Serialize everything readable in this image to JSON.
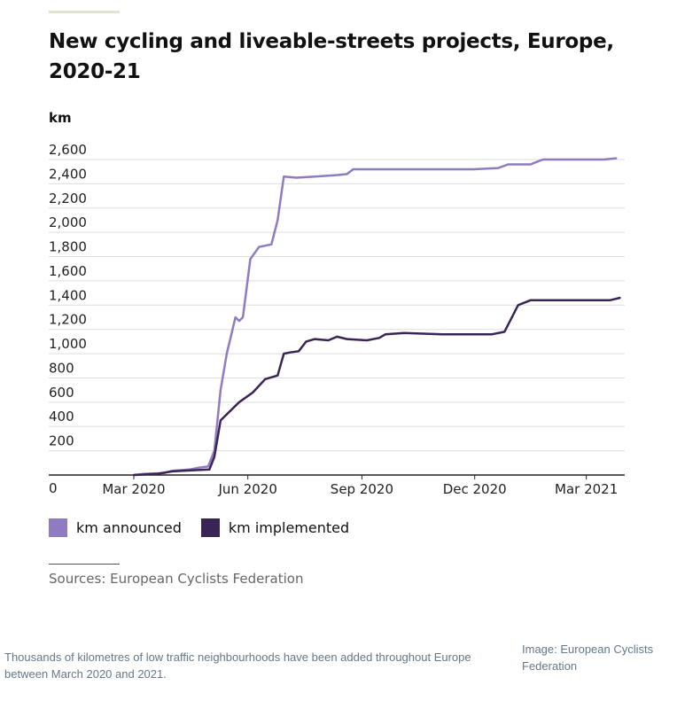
{
  "figure": {
    "title": "New cycling and liveable-streets projects, Europe, 2020-21",
    "unit_label": "km",
    "sources": "Sources: European Cyclists Federation"
  },
  "article": {
    "caption": "Thousands of kilometres of low traffic neighbourhoods have been added throughout Europe between March 2020 and 2021.",
    "credit": "Image: European Cyclists Federation"
  },
  "colors": {
    "announced": "#8e7bc2",
    "implemented": "#3a2456",
    "grid": "#dddddd",
    "axis": "#222222"
  },
  "chart_data": {
    "type": "line",
    "title": "New cycling and liveable-streets projects, Europe, 2020-21",
    "ylabel": "km",
    "xlabel": "",
    "ylim": [
      0,
      2600
    ],
    "grid": true,
    "legend_position": "bottom-left",
    "y_ticks": [
      {
        "value": 0,
        "label": "0"
      },
      {
        "value": 200,
        "label": "200"
      },
      {
        "value": 400,
        "label": "400"
      },
      {
        "value": 600,
        "label": "600"
      },
      {
        "value": 800,
        "label": "800"
      },
      {
        "value": 1000,
        "label": "1,000"
      },
      {
        "value": 1200,
        "label": "1,200"
      },
      {
        "value": 1400,
        "label": "1,400"
      },
      {
        "value": 1600,
        "label": "1,600"
      },
      {
        "value": 1800,
        "label": "1,800"
      },
      {
        "value": 2000,
        "label": "2,000"
      },
      {
        "value": 2200,
        "label": "2,200"
      },
      {
        "value": 2400,
        "label": "2,400"
      },
      {
        "value": 2600,
        "label": "2,600"
      }
    ],
    "x_ticks": [
      {
        "date": "2020-03-01",
        "label": "Mar 2020"
      },
      {
        "date": "2020-06-01",
        "label": "Jun 2020"
      },
      {
        "date": "2020-09-01",
        "label": "Sep 2020"
      },
      {
        "date": "2020-12-01",
        "label": "Dec 2020"
      },
      {
        "date": "2021-03-01",
        "label": "Mar 2021"
      }
    ],
    "x_domain": [
      "2020-02-15",
      "2021-04-01"
    ],
    "series": [
      {
        "name": "km announced",
        "color": "#8e7bc2",
        "points": [
          {
            "x": "2020-03-01",
            "y": 0
          },
          {
            "x": "2020-03-10",
            "y": 10
          },
          {
            "x": "2020-03-25",
            "y": 15
          },
          {
            "x": "2020-04-01",
            "y": 35
          },
          {
            "x": "2020-04-15",
            "y": 45
          },
          {
            "x": "2020-04-22",
            "y": 60
          },
          {
            "x": "2020-04-30",
            "y": 70
          },
          {
            "x": "2020-05-05",
            "y": 200
          },
          {
            "x": "2020-05-10",
            "y": 700
          },
          {
            "x": "2020-05-15",
            "y": 1000
          },
          {
            "x": "2020-05-22",
            "y": 1300
          },
          {
            "x": "2020-05-25",
            "y": 1270
          },
          {
            "x": "2020-05-28",
            "y": 1300
          },
          {
            "x": "2020-06-03",
            "y": 1780
          },
          {
            "x": "2020-06-10",
            "y": 1880
          },
          {
            "x": "2020-06-20",
            "y": 1900
          },
          {
            "x": "2020-06-25",
            "y": 2100
          },
          {
            "x": "2020-06-30",
            "y": 2460
          },
          {
            "x": "2020-07-10",
            "y": 2450
          },
          {
            "x": "2020-07-25",
            "y": 2460
          },
          {
            "x": "2020-08-10",
            "y": 2470
          },
          {
            "x": "2020-08-20",
            "y": 2480
          },
          {
            "x": "2020-08-25",
            "y": 2520
          },
          {
            "x": "2020-09-05",
            "y": 2520
          },
          {
            "x": "2020-11-30",
            "y": 2520
          },
          {
            "x": "2020-12-20",
            "y": 2530
          },
          {
            "x": "2020-12-28",
            "y": 2560
          },
          {
            "x": "2021-01-15",
            "y": 2560
          },
          {
            "x": "2021-01-20",
            "y": 2580
          },
          {
            "x": "2021-01-25",
            "y": 2600
          },
          {
            "x": "2021-03-15",
            "y": 2600
          },
          {
            "x": "2021-03-25",
            "y": 2610
          }
        ]
      },
      {
        "name": "km implemented",
        "color": "#3a2456",
        "points": [
          {
            "x": "2020-03-01",
            "y": 0
          },
          {
            "x": "2020-03-20",
            "y": 10
          },
          {
            "x": "2020-04-01",
            "y": 30
          },
          {
            "x": "2020-04-20",
            "y": 40
          },
          {
            "x": "2020-05-01",
            "y": 45
          },
          {
            "x": "2020-05-05",
            "y": 150
          },
          {
            "x": "2020-05-10",
            "y": 450
          },
          {
            "x": "2020-05-25",
            "y": 600
          },
          {
            "x": "2020-06-05",
            "y": 680
          },
          {
            "x": "2020-06-15",
            "y": 790
          },
          {
            "x": "2020-06-25",
            "y": 820
          },
          {
            "x": "2020-06-30",
            "y": 1000
          },
          {
            "x": "2020-07-05",
            "y": 1010
          },
          {
            "x": "2020-07-12",
            "y": 1020
          },
          {
            "x": "2020-07-18",
            "y": 1100
          },
          {
            "x": "2020-07-25",
            "y": 1120
          },
          {
            "x": "2020-08-05",
            "y": 1110
          },
          {
            "x": "2020-08-12",
            "y": 1140
          },
          {
            "x": "2020-08-20",
            "y": 1120
          },
          {
            "x": "2020-09-05",
            "y": 1110
          },
          {
            "x": "2020-09-15",
            "y": 1130
          },
          {
            "x": "2020-09-20",
            "y": 1160
          },
          {
            "x": "2020-10-05",
            "y": 1170
          },
          {
            "x": "2020-11-05",
            "y": 1160
          },
          {
            "x": "2020-12-15",
            "y": 1160
          },
          {
            "x": "2020-12-25",
            "y": 1180
          },
          {
            "x": "2021-01-05",
            "y": 1400
          },
          {
            "x": "2021-01-15",
            "y": 1440
          },
          {
            "x": "2021-03-20",
            "y": 1440
          },
          {
            "x": "2021-03-28",
            "y": 1460
          }
        ]
      }
    ]
  }
}
